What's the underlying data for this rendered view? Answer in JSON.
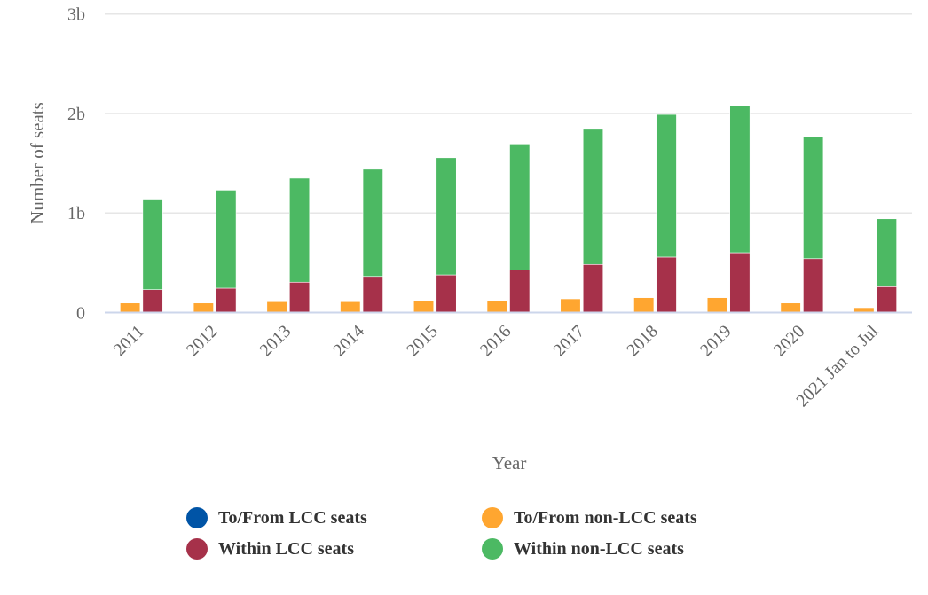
{
  "chart_data": {
    "type": "bar",
    "stacked": true,
    "title": "",
    "xlabel": "Year",
    "ylabel": "Number of seats",
    "ylim": [
      0,
      3000000000
    ],
    "yticks": [
      {
        "value": 0,
        "label": "0"
      },
      {
        "value": 1000000000,
        "label": "1b"
      },
      {
        "value": 2000000000,
        "label": "2b"
      },
      {
        "value": 3000000000,
        "label": "3b"
      }
    ],
    "grid": true,
    "legend_position": "bottom-center",
    "categories": [
      "2011",
      "2012",
      "2013",
      "2014",
      "2015",
      "2016",
      "2017",
      "2018",
      "2019",
      "2020",
      "2021 Jan to Jul"
    ],
    "series": [
      {
        "name": "To/From LCC seats",
        "stack": "to-from",
        "color": "#0054a6",
        "values": [
          0,
          0,
          0,
          0,
          0,
          0,
          0,
          0,
          0,
          0,
          0
        ]
      },
      {
        "name": "To/From non-LCC seats",
        "stack": "to-from",
        "color": "#ffa630",
        "values": [
          96000000,
          96000000,
          109000000,
          109000000,
          120000000,
          120000000,
          138000000,
          150000000,
          150000000,
          96000000,
          49000000
        ]
      },
      {
        "name": "Within LCC seats",
        "stack": "within",
        "color": "#a6314a",
        "values": [
          230000000,
          245000000,
          305000000,
          363000000,
          378000000,
          426000000,
          483000000,
          557000000,
          601000000,
          541000000,
          260000000
        ]
      },
      {
        "name": "Within non-LCC seats",
        "stack": "within",
        "color": "#4cb963",
        "values": [
          910000000,
          985000000,
          1045000000,
          1077000000,
          1178000000,
          1268000000,
          1358000000,
          1433000000,
          1478000000,
          1224000000,
          682000000
        ]
      }
    ]
  },
  "legend": {
    "items": [
      {
        "label": "To/From LCC seats",
        "color": "#0054a6"
      },
      {
        "label": "To/From non-LCC seats",
        "color": "#ffa630"
      },
      {
        "label": "Within LCC seats",
        "color": "#a6314a"
      },
      {
        "label": "Within non-LCC seats",
        "color": "#4cb963"
      }
    ]
  }
}
